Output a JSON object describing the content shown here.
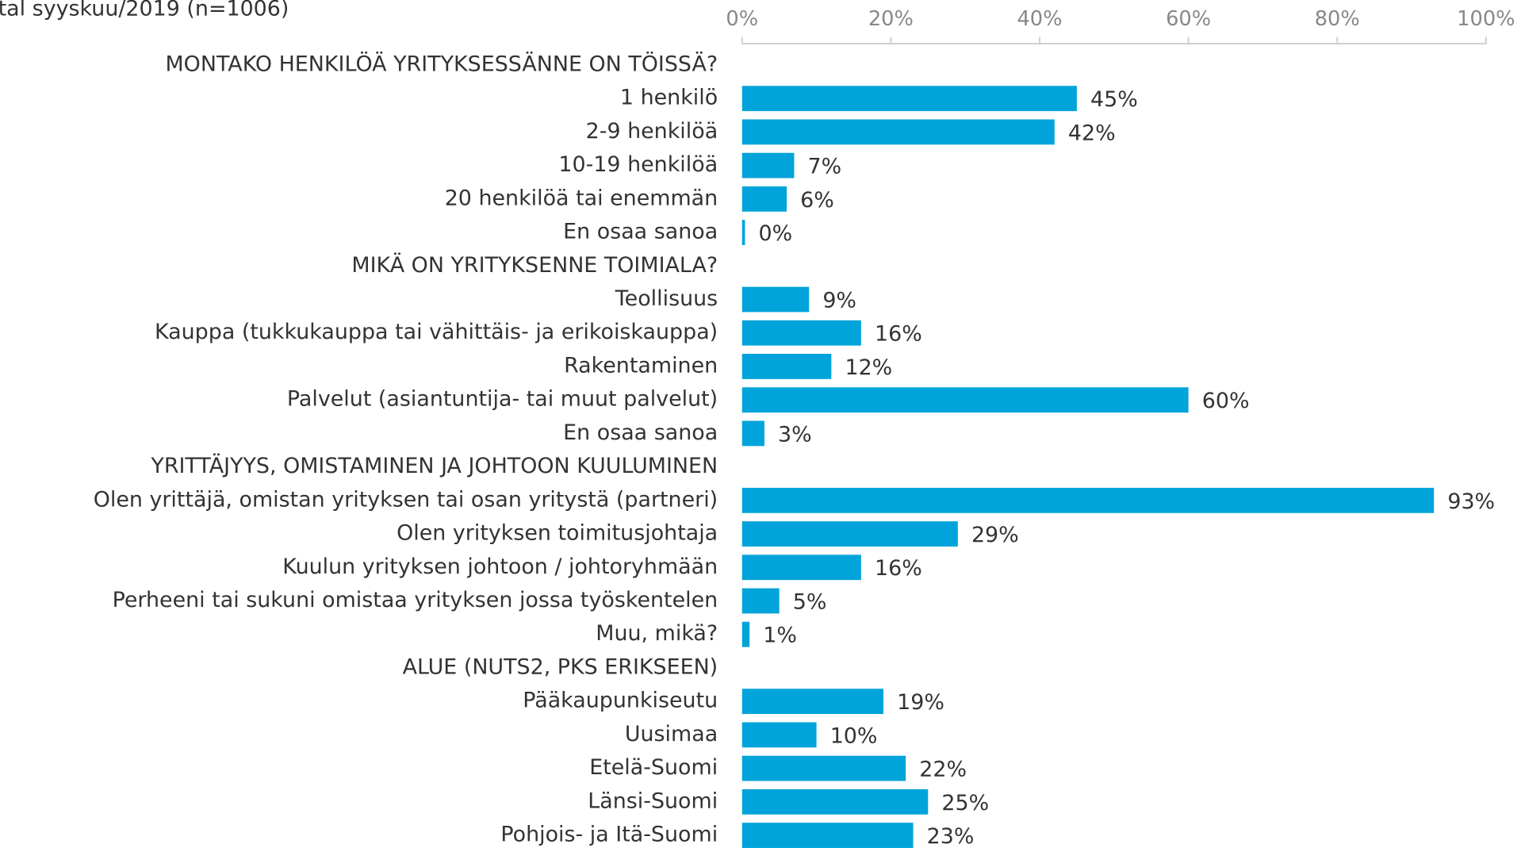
{
  "chart_data": {
    "type": "hbar",
    "title": "tal syyskuu/2019 (n=1006)",
    "categories": [
      "MONTAKO HENKILÖÄ YRITYKSESSÄNNE ON TÖISSÄ?",
      "1 henkilö",
      "2-9 henkilöä",
      "10-19 henkilöä",
      "20 henkilöä tai enemmän",
      "En osaa sanoa",
      "MIKÄ ON YRITYKSENNE TOIMIALA?",
      "Teollisuus",
      "Kauppa (tukkukauppa tai vähittäis- ja erikoiskauppa)",
      "Rakentaminen",
      "Palvelut (asiantuntija- tai muut palvelut)",
      "En osaa sanoa",
      "YRITTÄJYYS, OMISTAMINEN JA JOHTOON KUULUMINEN",
      "Olen yrittäjä, omistan yrityksen tai osan yritystä (partneri)",
      "Olen yrityksen toimitusjohtaja",
      "Kuulun yrityksen johtoon / johtoryhmään",
      "Perheeni tai sukuni omistaa yrityksen jossa työskentelen",
      "Muu, mikä?",
      "ALUE (NUTS2, PKS ERIKSEEN)",
      "Pääkaupunkiseutu",
      "Uusimaa",
      "Etelä-Suomi",
      "Länsi-Suomi",
      "Pohjois- ja Itä-Suomi"
    ],
    "values": [
      null,
      45,
      42,
      7,
      6,
      0,
      null,
      9,
      16,
      12,
      60,
      3,
      null,
      93,
      29,
      16,
      5,
      1,
      null,
      19,
      10,
      22,
      25,
      23
    ],
    "value_labels": [
      null,
      "45%",
      "42%",
      "7%",
      "6%",
      "0%",
      null,
      "9%",
      "16%",
      "12%",
      "60%",
      "3%",
      null,
      "93%",
      "29%",
      "16%",
      "5%",
      "1%",
      null,
      "19%",
      "10%",
      "22%",
      "25%",
      "23%"
    ],
    "color": "#00a3da",
    "xlim": [
      0,
      100
    ],
    "xticks": [
      {
        "value": 0,
        "label": "0%"
      },
      {
        "value": 20,
        "label": "20%"
      },
      {
        "value": 40,
        "label": "40%"
      },
      {
        "value": 60,
        "label": "60%"
      },
      {
        "value": 80,
        "label": "80%"
      },
      {
        "value": 100,
        "label": "100%"
      }
    ]
  }
}
